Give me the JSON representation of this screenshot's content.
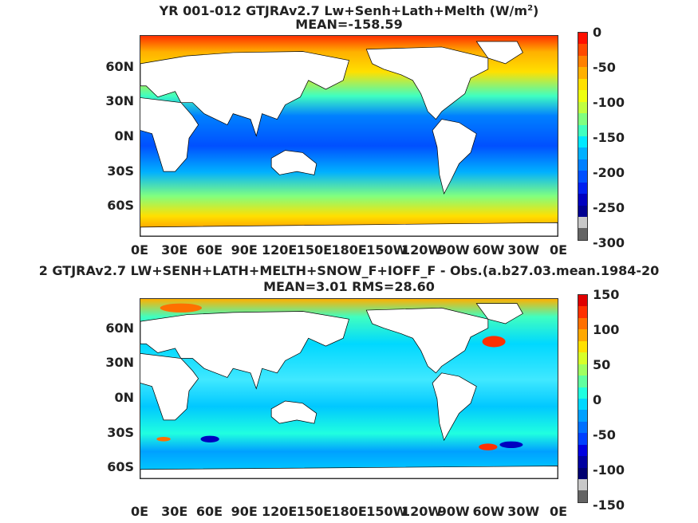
{
  "panel1": {
    "title_line1_prefix": "YR 001-012 GTJRAv2.7 Lw+Senh+Lath+Melth (W/m",
    "title_line1_sup": "2",
    "title_line1_suffix": ")",
    "title_line2": "MEAN=-158.59",
    "colorbar_ticks": [
      "0",
      "-50",
      "-100",
      "-150",
      "-200",
      "-250",
      "-300"
    ],
    "colors": [
      "#ff1000",
      "#ff4a00",
      "#ff8000",
      "#ffb000",
      "#ffe000",
      "#eeff10",
      "#c0ff40",
      "#80ff80",
      "#40ffc0",
      "#00e8ff",
      "#00b0ff",
      "#0080ff",
      "#0050ff",
      "#0020f0",
      "#0000c0",
      "#000090",
      "#c8c8c8",
      "#646464"
    ]
  },
  "panel2": {
    "title_line1": "2 GTJRAv2.7 LW+SENH+LATH+MELTH+SNOW_F+IOFF_F - Obs.(a.b27.03.mean.1984-20",
    "title_line2": "MEAN=3.01 RMS=28.60",
    "colorbar_ticks": [
      "150",
      "100",
      "50",
      "0",
      "-50",
      "-100",
      "-150"
    ],
    "colors": [
      "#e00000",
      "#ff3000",
      "#ff7000",
      "#ffa800",
      "#ffe000",
      "#d8ff28",
      "#a0ff60",
      "#60ffa0",
      "#20ffe0",
      "#00d8ff",
      "#00a0ff",
      "#0070ff",
      "#0040ff",
      "#0000e0",
      "#0000a0",
      "#000070",
      "#c8c8c8",
      "#646464"
    ]
  },
  "axes": {
    "lat_labels": [
      "60N",
      "30N",
      "0N",
      "30S",
      "60S"
    ],
    "lon_labels": [
      "0E",
      "30E",
      "60E",
      "90E",
      "120E",
      "150E",
      "180E",
      "150W",
      "120W",
      "90W",
      "60W",
      "30W",
      "0E"
    ]
  },
  "palette": {
    "land": "#ffffff",
    "coast": "#000000"
  }
}
